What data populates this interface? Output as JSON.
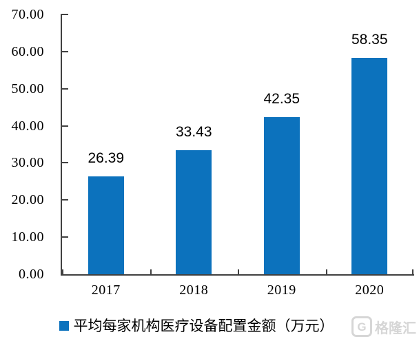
{
  "chart_data": {
    "type": "bar",
    "categories": [
      "2017",
      "2018",
      "2019",
      "2020"
    ],
    "values": [
      26.39,
      33.43,
      42.35,
      58.35
    ],
    "value_labels": [
      "26.39",
      "33.43",
      "42.35",
      "58.35"
    ],
    "title": "",
    "xlabel": "",
    "ylabel": "",
    "ylim": [
      0,
      70
    ],
    "ytick_step": 10,
    "ytick_labels": [
      "0.00",
      "10.00",
      "20.00",
      "30.00",
      "40.00",
      "50.00",
      "60.00",
      "70.00"
    ],
    "grid": false,
    "legend_position": "bottom",
    "legend": [
      "平均每家机构医疗设备配置金额（万元）"
    ],
    "bar_color": "#0c72bd",
    "axis_color": "#404040"
  },
  "legend": {
    "label": "平均每家机构医疗设备配置金额（万元）"
  },
  "watermark": {
    "logo_letter": "G",
    "brand": "格隆汇",
    "color": "#d6d6d6"
  }
}
